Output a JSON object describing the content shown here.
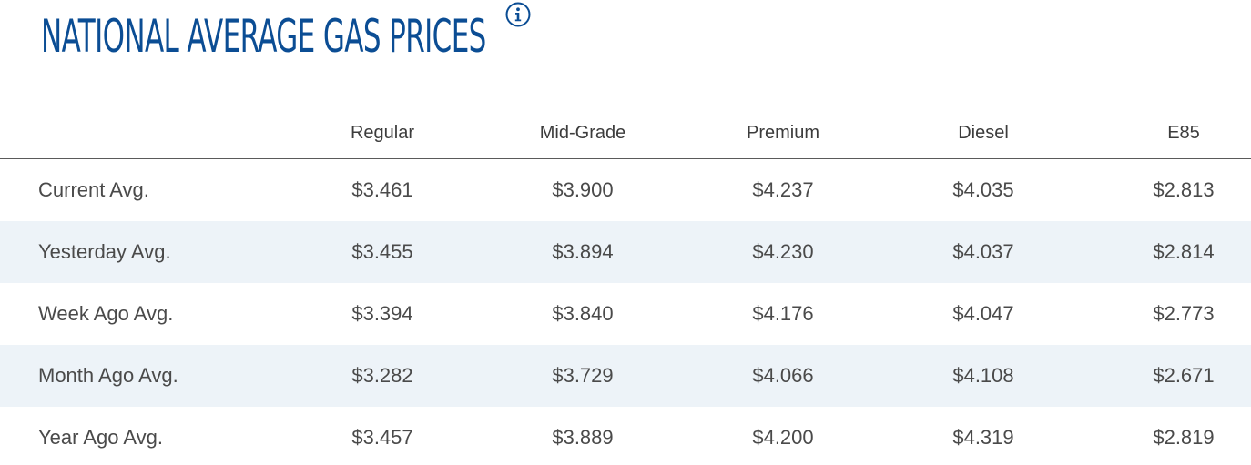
{
  "header": {
    "title": "NATIONAL AVERAGE GAS PRICES",
    "info_icon": "info-icon"
  },
  "colors": {
    "title": "#0b4d94",
    "row_shade": "#edf3f8",
    "text": "#4a4a4a"
  },
  "table": {
    "columns": [
      "",
      "Regular",
      "Mid-Grade",
      "Premium",
      "Diesel",
      "E85"
    ],
    "rows": [
      {
        "label": "Current Avg.",
        "values": [
          "$3.461",
          "$3.900",
          "$4.237",
          "$4.035",
          "$2.813"
        ]
      },
      {
        "label": "Yesterday Avg.",
        "values": [
          "$3.455",
          "$3.894",
          "$4.230",
          "$4.037",
          "$2.814"
        ]
      },
      {
        "label": "Week Ago Avg.",
        "values": [
          "$3.394",
          "$3.840",
          "$4.176",
          "$4.047",
          "$2.773"
        ]
      },
      {
        "label": "Month Ago Avg.",
        "values": [
          "$3.282",
          "$3.729",
          "$4.066",
          "$4.108",
          "$2.671"
        ]
      },
      {
        "label": "Year Ago Avg.",
        "values": [
          "$3.457",
          "$3.889",
          "$4.200",
          "$4.319",
          "$2.819"
        ]
      }
    ]
  }
}
